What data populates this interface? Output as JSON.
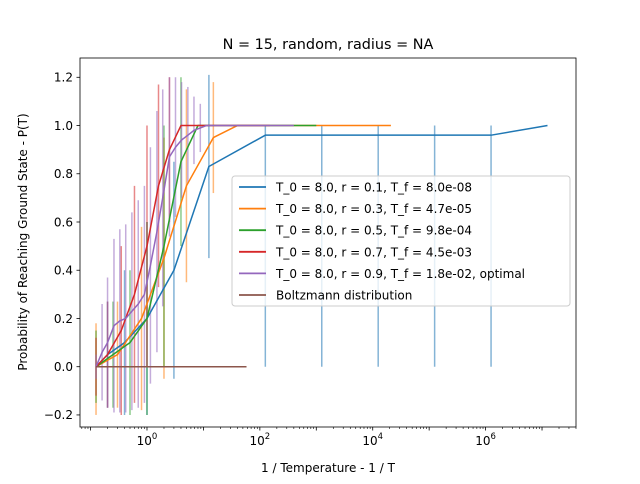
{
  "chart_data": {
    "type": "line",
    "title": "N = 15, random, radius = NA",
    "xlabel": "1 / Temperature - 1 / T",
    "ylabel": "Probability of Reaching Ground State - P(T)",
    "xscale": "log",
    "xlim": [
      0.065,
      40000000.0
    ],
    "ylim": [
      -0.25,
      1.28
    ],
    "x_ticks": [
      {
        "value": 1,
        "label": "10^0"
      },
      {
        "value": 100,
        "label": "10^2"
      },
      {
        "value": 10000,
        "label": "10^4"
      },
      {
        "value": 1000000,
        "label": "10^6"
      }
    ],
    "y_ticks": [
      {
        "value": -0.2,
        "label": "−0.2"
      },
      {
        "value": 0.0,
        "label": "0.0"
      },
      {
        "value": 0.2,
        "label": "0.2"
      },
      {
        "value": 0.4,
        "label": "0.4"
      },
      {
        "value": 0.6,
        "label": "0.6"
      },
      {
        "value": 0.8,
        "label": "0.8"
      },
      {
        "value": 1.0,
        "label": "1.0"
      },
      {
        "value": 1.2,
        "label": "1.2"
      }
    ],
    "grid": false,
    "legend_position": "center-right",
    "series": [
      {
        "name": "T_0 = 8.0, r = 0.1, T_f = 8.0e-08",
        "color": "#1f77b4",
        "x": [
          0.125,
          0.2,
          0.4,
          1,
          3,
          12.5,
          125,
          1250,
          12500,
          125000,
          1250000,
          12500000
        ],
        "y": [
          0.0,
          0.05,
          0.1,
          0.2,
          0.4,
          0.83,
          0.96,
          0.96,
          0.96,
          0.96,
          0.96,
          1.0
        ],
        "err_low": [
          0.0,
          0.22,
          0.3,
          0.4,
          0.45,
          0.38,
          0.96,
          0.96,
          0.96,
          0.96,
          0.96,
          0.0
        ],
        "err_high": [
          0.0,
          0.22,
          0.3,
          0.4,
          0.45,
          0.38,
          0.04,
          0.04,
          0.04,
          0.04,
          0.04,
          0.0
        ]
      },
      {
        "name": "T_0 = 8.0, r = 0.3, T_f = 4.7e-05",
        "color": "#ff7f0e",
        "x": [
          0.125,
          0.3,
          0.8,
          2,
          5,
          15,
          40,
          150,
          2000,
          21000
        ],
        "y": [
          0.0,
          0.05,
          0.2,
          0.45,
          0.75,
          0.95,
          1.0,
          1.0,
          1.0,
          1.0
        ],
        "err_low": [
          0.2,
          0.22,
          0.38,
          0.5,
          0.4,
          0.23,
          0.0,
          0.0,
          0.0,
          0.0
        ],
        "err_high": [
          0.18,
          0.22,
          0.38,
          0.5,
          0.4,
          0.23,
          0.0,
          0.0,
          0.0,
          0.0
        ]
      },
      {
        "name": "T_0 = 8.0, r = 0.5, T_f = 9.8e-04",
        "color": "#2ca02c",
        "x": [
          0.125,
          0.25,
          0.5,
          1,
          2,
          4,
          8,
          1000
        ],
        "y": [
          0.0,
          0.05,
          0.1,
          0.2,
          0.5,
          0.85,
          1.0,
          1.0
        ],
        "err_low": [
          0.15,
          0.22,
          0.3,
          0.4,
          0.5,
          0.35,
          0.0,
          0.0
        ],
        "err_high": [
          0.15,
          0.22,
          0.3,
          0.4,
          0.5,
          0.35,
          0.0,
          0.0
        ]
      },
      {
        "name": "T_0 = 8.0, r = 0.7, T_f = 4.5e-03",
        "color": "#d62728",
        "x": [
          0.125,
          0.2,
          0.35,
          0.6,
          1,
          1.6,
          2.5,
          4,
          8,
          30,
          150
        ],
        "y": [
          0.0,
          0.05,
          0.15,
          0.3,
          0.5,
          0.75,
          0.9,
          1.0,
          1.0,
          1.0,
          1.0
        ],
        "err_low": [
          0.12,
          0.22,
          0.35,
          0.45,
          0.5,
          0.42,
          0.3,
          0.0,
          0.0,
          0.0,
          0.0
        ],
        "err_high": [
          0.12,
          0.22,
          0.35,
          0.45,
          0.5,
          0.42,
          0.3,
          0.0,
          0.0,
          0.0,
          0.0
        ]
      },
      {
        "name": "T_0 = 8.0, r = 0.9, T_f = 1.8e-02, optimal",
        "color": "#9467bd",
        "x": [
          0.125,
          0.16,
          0.2,
          0.26,
          0.33,
          0.42,
          0.54,
          0.7,
          0.9,
          1.15,
          1.5,
          1.9,
          2.5,
          3.2,
          4.1,
          5.3,
          6.8,
          8.8,
          11.3,
          14.5,
          30,
          100,
          400
        ],
        "y": [
          0.0,
          0.06,
          0.1,
          0.17,
          0.19,
          0.2,
          0.23,
          0.26,
          0.3,
          0.42,
          0.56,
          0.7,
          0.87,
          0.91,
          0.94,
          0.96,
          0.98,
          0.99,
          1.0,
          1.0,
          1.0,
          1.0,
          1.0
        ],
        "err_low": [
          0.05,
          0.2,
          0.27,
          0.36,
          0.38,
          0.39,
          0.41,
          0.43,
          0.45,
          0.49,
          0.5,
          0.45,
          0.33,
          0.29,
          0.24,
          0.2,
          0.14,
          0.1,
          0.0,
          0.0,
          0.0,
          0.0,
          0.0
        ],
        "err_high": [
          0.05,
          0.2,
          0.27,
          0.36,
          0.38,
          0.39,
          0.41,
          0.43,
          0.45,
          0.49,
          0.5,
          0.45,
          0.33,
          0.29,
          0.24,
          0.2,
          0.14,
          0.1,
          0.0,
          0.0,
          0.0,
          0.0,
          0.0
        ]
      },
      {
        "name": "Boltzmann distribution",
        "color": "#8c564b",
        "x": [
          0.125,
          1,
          10,
          58
        ],
        "y": [
          0.0,
          0.0,
          0.0,
          0.0
        ]
      }
    ]
  }
}
